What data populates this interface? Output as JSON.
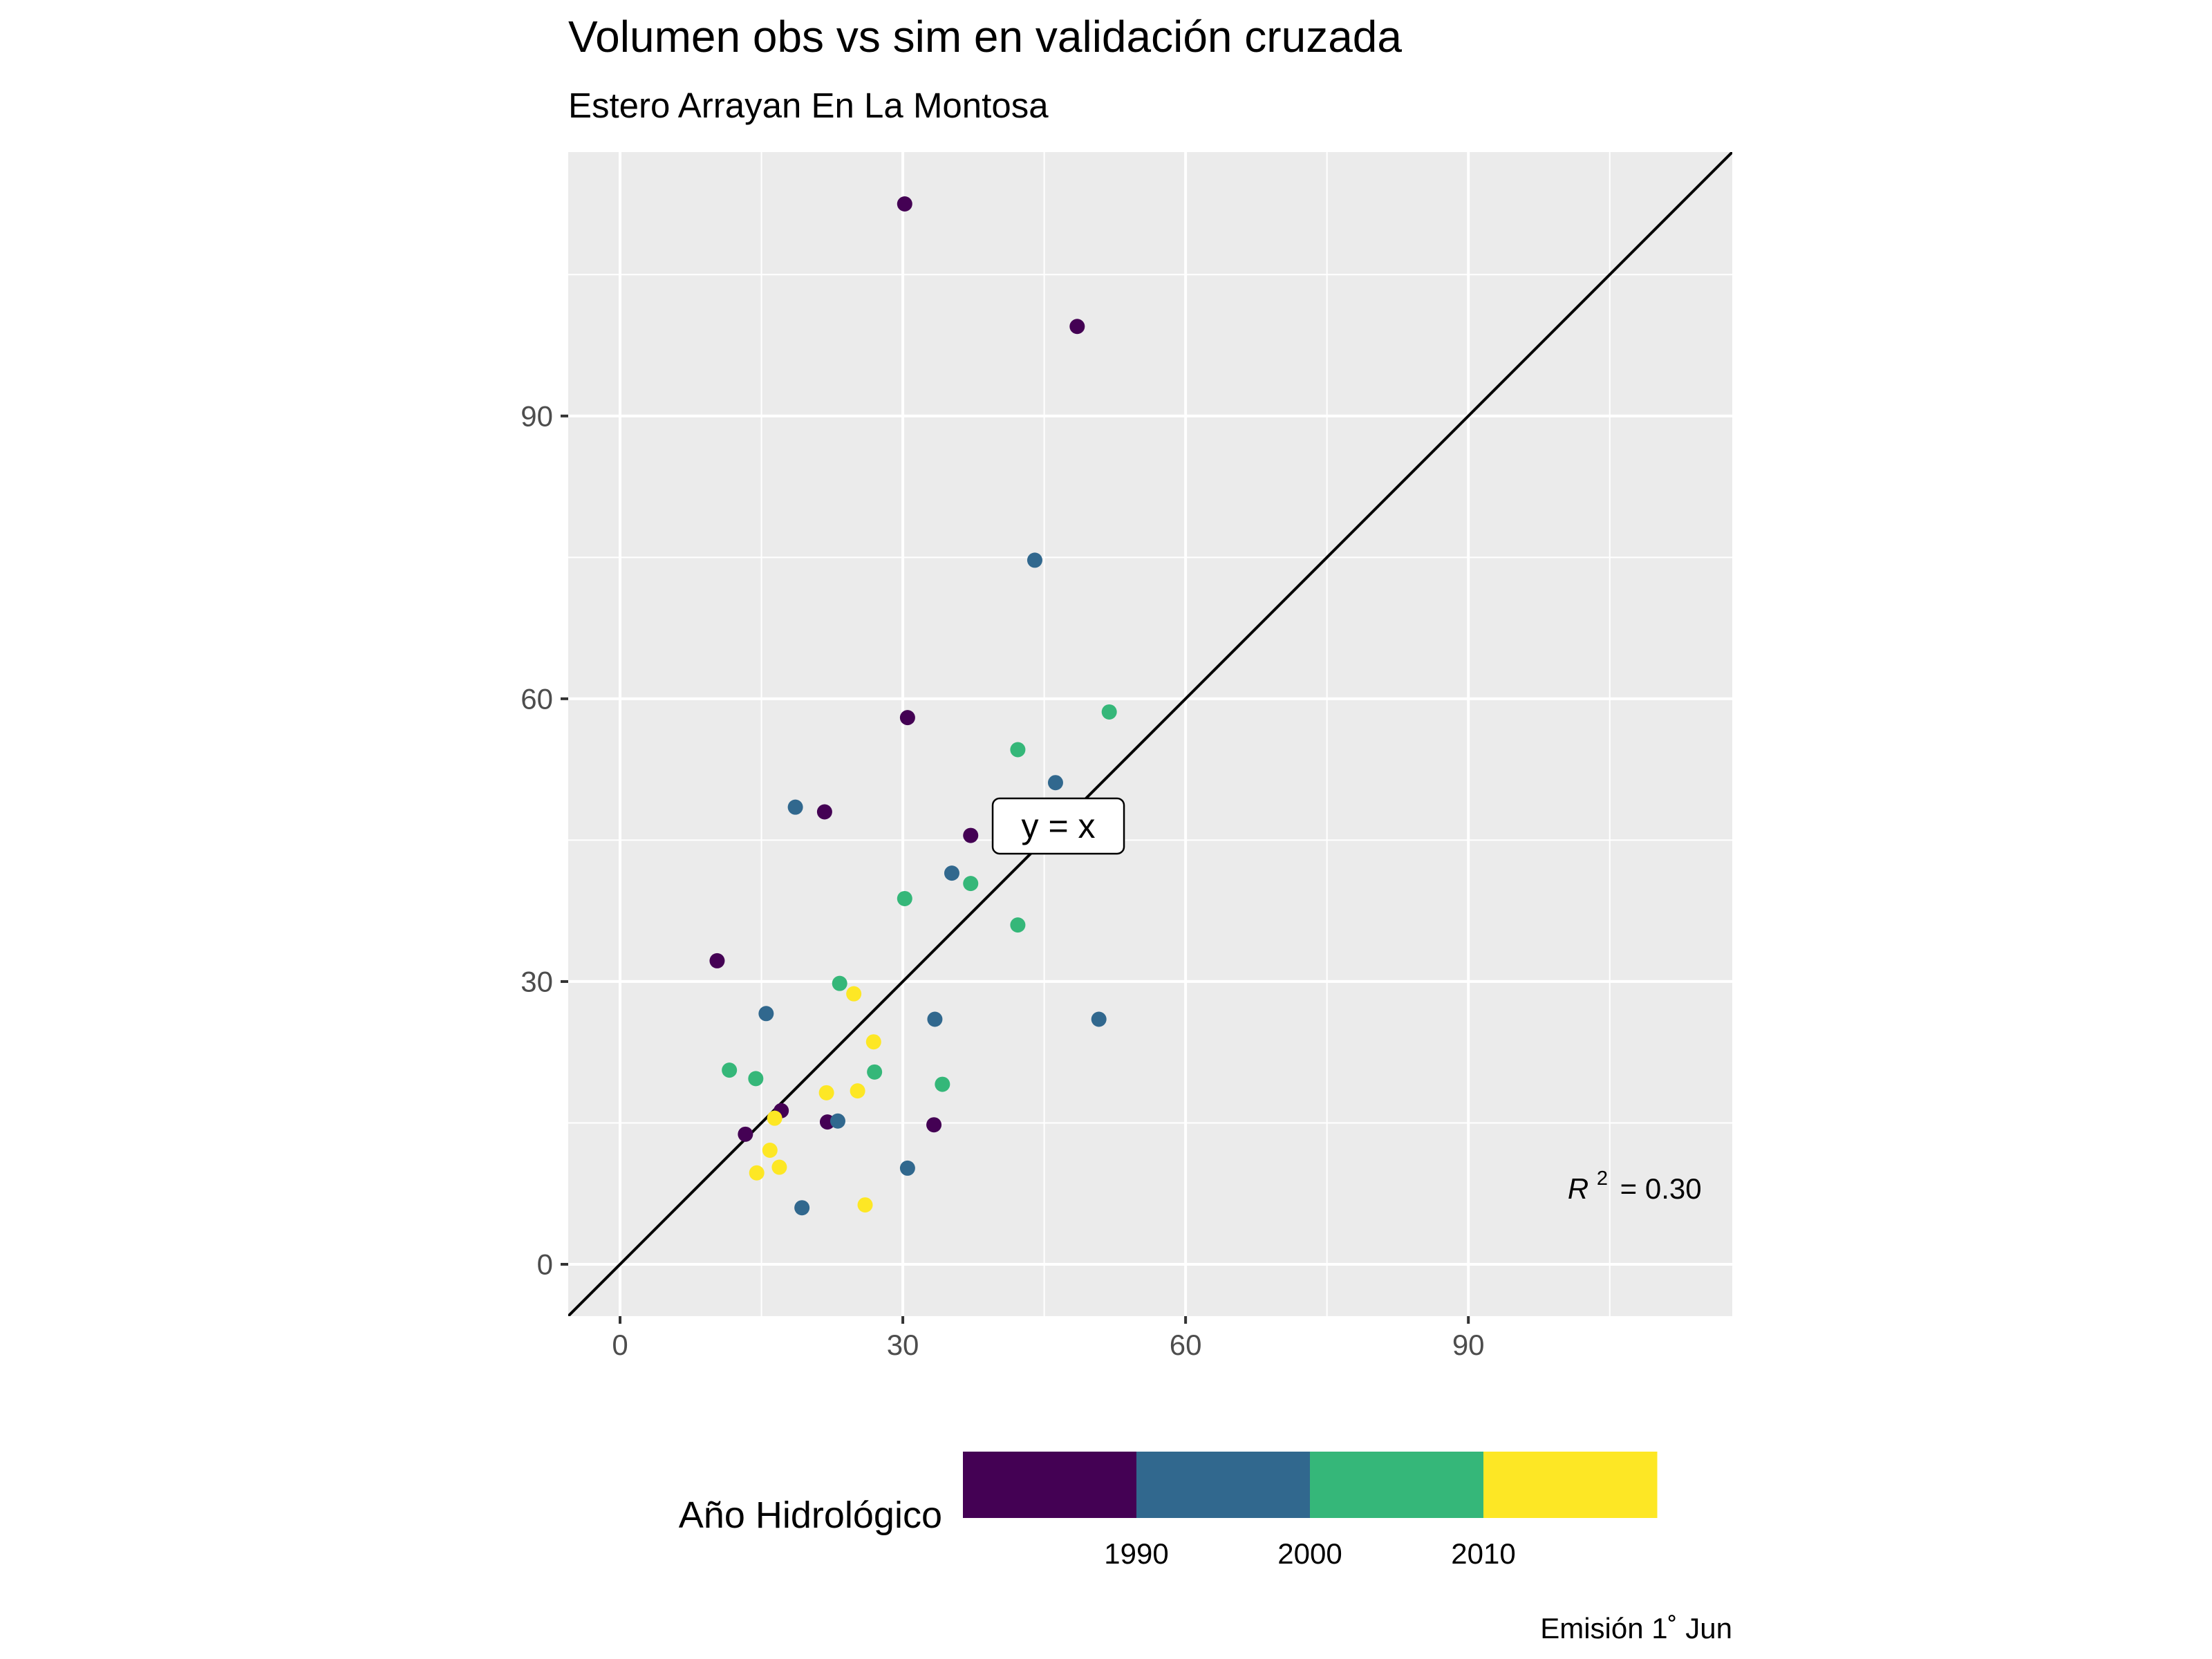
{
  "chart_data": {
    "type": "scatter",
    "title": "Volumen obs vs sim en validación cruzada",
    "subtitle": "Estero Arrayan En La Montosa",
    "xlabel": "",
    "ylabel": "",
    "xlim": [
      -5.5,
      118
    ],
    "ylim": [
      -5.5,
      118
    ],
    "xticks": [
      0,
      30,
      60,
      90
    ],
    "yticks": [
      0,
      30,
      60,
      90
    ],
    "xtick_labels": [
      "0",
      "30",
      "60",
      "90"
    ],
    "ytick_labels": [
      "0",
      "30",
      "60",
      "90"
    ],
    "grid": true,
    "reference_line": {
      "label": "y = x",
      "slope": 1,
      "intercept": 0,
      "label_x": 46.5,
      "label_y": 46.5
    },
    "annotation": {
      "text": "= 0.30",
      "symbol": "R",
      "superscript": "2",
      "x": 102,
      "y": 8
    },
    "points": [
      {
        "x": 30.2,
        "y": 112.5,
        "year": 1985
      },
      {
        "x": 48.5,
        "y": 99.5,
        "year": 1985
      },
      {
        "x": 30.5,
        "y": 58,
        "year": 1985
      },
      {
        "x": 21.7,
        "y": 48,
        "year": 1985
      },
      {
        "x": 37.2,
        "y": 45.5,
        "year": 1985
      },
      {
        "x": 10.3,
        "y": 32.2,
        "year": 1985
      },
      {
        "x": 17.1,
        "y": 16.3,
        "year": 1985
      },
      {
        "x": 22.0,
        "y": 15.1,
        "year": 1985
      },
      {
        "x": 33.3,
        "y": 14.8,
        "year": 1985
      },
      {
        "x": 13.3,
        "y": 13.8,
        "year": 1985
      },
      {
        "x": 44.0,
        "y": 74.7,
        "year": 1995
      },
      {
        "x": 46.2,
        "y": 51.1,
        "year": 1995
      },
      {
        "x": 18.6,
        "y": 48.5,
        "year": 1995
      },
      {
        "x": 35.2,
        "y": 41.5,
        "year": 1995
      },
      {
        "x": 15.5,
        "y": 26.6,
        "year": 1995
      },
      {
        "x": 33.4,
        "y": 26.0,
        "year": 1995
      },
      {
        "x": 50.8,
        "y": 26.0,
        "year": 1995
      },
      {
        "x": 23.1,
        "y": 15.2,
        "year": 1995
      },
      {
        "x": 30.5,
        "y": 10.2,
        "year": 1995
      },
      {
        "x": 19.3,
        "y": 6.0,
        "year": 1995
      },
      {
        "x": 51.9,
        "y": 58.6,
        "year": 2005
      },
      {
        "x": 42.2,
        "y": 54.6,
        "year": 2005
      },
      {
        "x": 37.2,
        "y": 40.4,
        "year": 2005
      },
      {
        "x": 30.2,
        "y": 38.8,
        "year": 2005
      },
      {
        "x": 42.2,
        "y": 36.0,
        "year": 2005
      },
      {
        "x": 23.3,
        "y": 29.8,
        "year": 2005
      },
      {
        "x": 11.6,
        "y": 20.6,
        "year": 2005
      },
      {
        "x": 14.4,
        "y": 19.7,
        "year": 2005
      },
      {
        "x": 27.0,
        "y": 20.4,
        "year": 2005
      },
      {
        "x": 34.2,
        "y": 19.1,
        "year": 2005
      },
      {
        "x": 24.8,
        "y": 28.7,
        "year": 2015
      },
      {
        "x": 26.9,
        "y": 23.6,
        "year": 2015
      },
      {
        "x": 21.9,
        "y": 18.2,
        "year": 2015
      },
      {
        "x": 25.2,
        "y": 18.4,
        "year": 2015
      },
      {
        "x": 16.4,
        "y": 15.5,
        "year": 2015
      },
      {
        "x": 15.9,
        "y": 12.1,
        "year": 2015
      },
      {
        "x": 16.9,
        "y": 10.3,
        "year": 2015
      },
      {
        "x": 14.5,
        "y": 9.7,
        "year": 2015
      },
      {
        "x": 26.0,
        "y": 6.3,
        "year": 2015
      }
    ],
    "legend": {
      "title": "Año Hidrológico",
      "placement": "bottom",
      "colors": [
        "#440154",
        "#31688E",
        "#35B779",
        "#FDE725"
      ],
      "bins": [
        1980,
        1990,
        2000,
        2010,
        2020
      ],
      "tick_values": [
        1990,
        2000,
        2010
      ],
      "tick_labels": [
        "1990",
        "2000",
        "2010"
      ]
    },
    "caption": "Emisión 1˚ Jun"
  }
}
